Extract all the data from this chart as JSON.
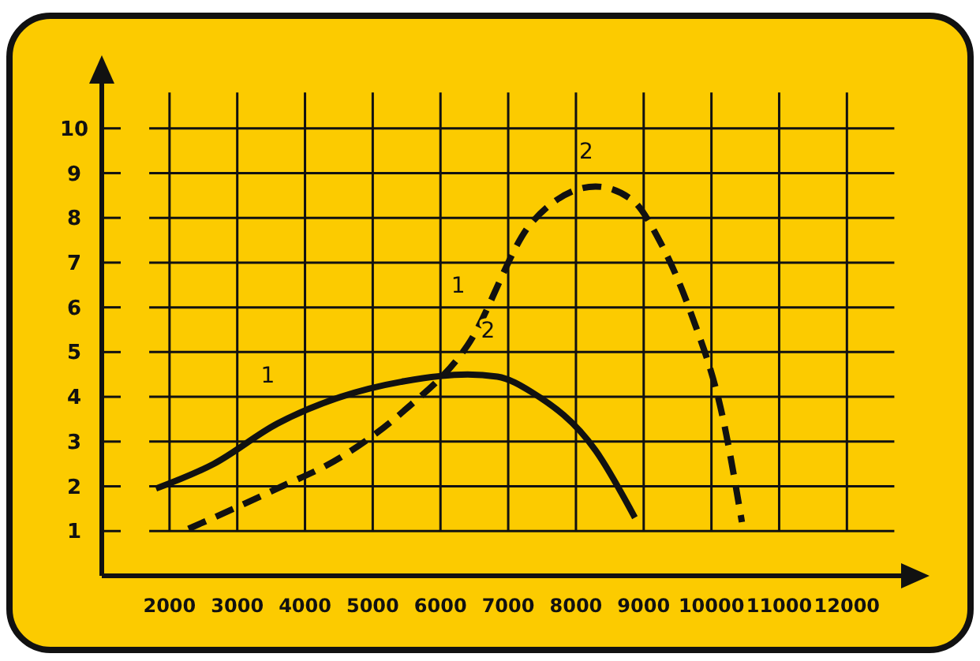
{
  "chart_data": {
    "type": "line",
    "xlim": [
      1000,
      12800
    ],
    "ylim": [
      0,
      11
    ],
    "xticks": [
      2000,
      3000,
      4000,
      5000,
      6000,
      7000,
      8000,
      9000,
      10000,
      11000,
      12000
    ],
    "yticks": [
      1,
      2,
      3,
      4,
      5,
      6,
      7,
      8,
      9,
      10
    ],
    "grid": true,
    "marker": "none",
    "series": [
      {
        "color": "#111111",
        "line_style": "solid",
        "x": [
          1800,
          2650,
          3590,
          4530,
          5470,
          6400,
          6840,
          7350,
          8290,
          8870
        ],
        "values": [
          1.95,
          2.5,
          3.4,
          4.0,
          4.35,
          4.5,
          4.45,
          4.1,
          2.8,
          1.3
        ]
      },
      {
        "color": "#111111",
        "line_style": "dashed",
        "x": [
          2280,
          3590,
          4530,
          5470,
          6400,
          7350,
          8290,
          8830,
          9230,
          9690,
          10180,
          10450
        ],
        "values": [
          1.05,
          1.95,
          2.65,
          3.7,
          5.15,
          7.9,
          8.7,
          8.4,
          7.5,
          5.9,
          3.45,
          1.2
        ]
      }
    ],
    "annotations": [
      {
        "text": "1",
        "x": 3590,
        "y": 3.4
      },
      {
        "text": "1",
        "x": 6400,
        "y": 5.15
      },
      {
        "text": "2",
        "x": 6840,
        "y": 4.45
      },
      {
        "text": "2",
        "x": 8290,
        "y": 8.7
      }
    ]
  }
}
